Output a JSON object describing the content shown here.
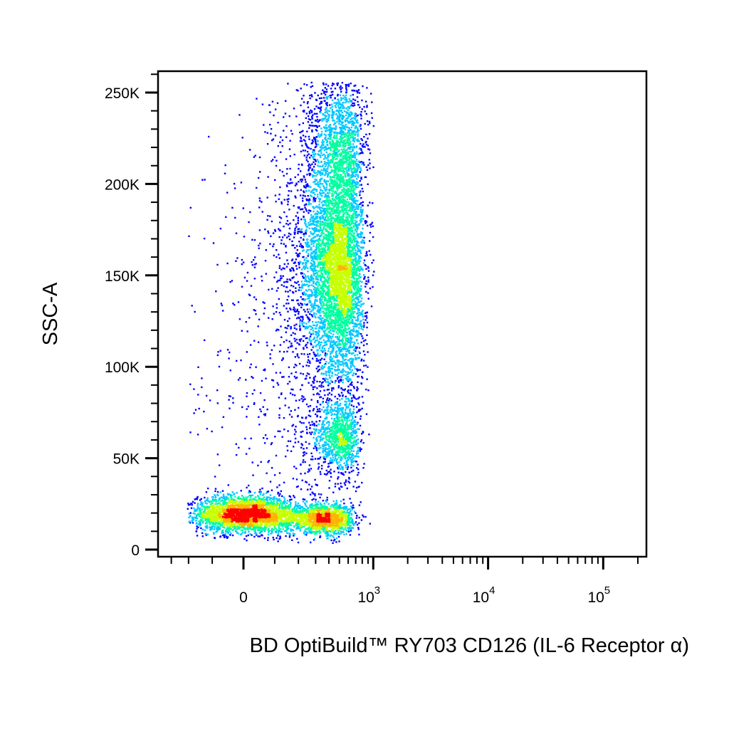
{
  "chart_data": {
    "type": "scatter",
    "style": "density-pseudocolor",
    "xlabel": "BD OptiBuild™ RY703 CD126 (IL-6 Receptor α)",
    "ylabel": "SSC-A",
    "x_scale": "biexponential",
    "xlim": [
      -300,
      200000
    ],
    "ylim": [
      0,
      262144
    ],
    "x_ticks": [
      {
        "value": 0,
        "label": "0"
      },
      {
        "value": 1000,
        "label": "10",
        "exp": "3"
      },
      {
        "value": 10000,
        "label": "10",
        "exp": "4"
      },
      {
        "value": 100000,
        "label": "10",
        "exp": "5"
      }
    ],
    "y_ticks": [
      {
        "value": 0,
        "label": "0"
      },
      {
        "value": 50000,
        "label": "50K"
      },
      {
        "value": 100000,
        "label": "100K"
      },
      {
        "value": 150000,
        "label": "150K"
      },
      {
        "value": 200000,
        "label": "200K"
      },
      {
        "value": 250000,
        "label": "250K"
      }
    ],
    "grid": false,
    "legend": "none",
    "density_colors": [
      "#0000ff",
      "#00c8ff",
      "#00ffa0",
      "#c8ff00",
      "#ffb400",
      "#ff0000"
    ],
    "populations": [
      {
        "cx": 0,
        "cy": 20000,
        "sx": 80,
        "sy": 5000,
        "n": 2600
      },
      {
        "cx": 320,
        "cy": 17000,
        "sx": 160,
        "sy": 4000,
        "n": 1600
      },
      {
        "cx": 500,
        "cy": 62000,
        "sx": 120,
        "sy": 10000,
        "n": 900
      },
      {
        "cx": 470,
        "cy": 155000,
        "sx": 160,
        "sy": 32000,
        "n": 5200
      },
      {
        "cx": 480,
        "cy": 225000,
        "sx": 170,
        "sy": 18000,
        "n": 1300
      },
      {
        "cx": 250,
        "cy": 90000,
        "sx": 250,
        "sy": 60000,
        "n": 900
      }
    ]
  }
}
